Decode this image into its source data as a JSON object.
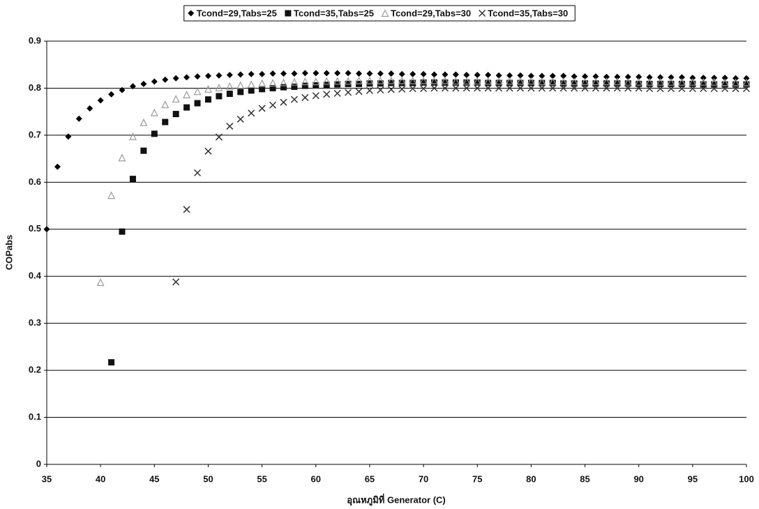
{
  "chart_data": {
    "type": "scatter",
    "x_label": "อุณหภูมิที่ Generator (C)",
    "y_label": "COPabs",
    "xlim": [
      35,
      100
    ],
    "xticks": [
      35,
      40,
      45,
      50,
      55,
      60,
      65,
      70,
      75,
      80,
      85,
      90,
      95,
      100
    ],
    "ylim": [
      0,
      0.9
    ],
    "yticks": [
      0,
      0.1,
      0.2,
      0.3,
      0.4,
      0.5,
      0.6,
      0.7,
      0.8,
      0.9
    ],
    "grid": true,
    "legend": "top",
    "series": [
      {
        "name": "Tcond=29,Tabs=25",
        "color": "#000000",
        "marker": "diamond",
        "x": [
          35,
          36,
          37,
          38,
          39,
          40,
          41,
          42,
          43,
          44,
          45,
          46,
          47,
          48,
          49,
          50,
          51,
          52,
          53,
          54,
          55,
          56,
          57,
          58,
          59,
          60,
          61,
          62,
          63,
          64,
          65,
          66,
          67,
          68,
          69,
          70,
          71,
          72,
          73,
          74,
          75,
          76,
          77,
          78,
          79,
          80,
          81,
          82,
          83,
          84,
          85,
          86,
          87,
          88,
          89,
          90,
          91,
          92,
          93,
          94,
          95,
          96,
          97,
          98,
          99,
          100
        ],
        "values": [
          0.5,
          0.633,
          0.697,
          0.735,
          0.757,
          0.774,
          0.787,
          0.796,
          0.804,
          0.809,
          0.814,
          0.818,
          0.821,
          0.823,
          0.825,
          0.826,
          0.827,
          0.828,
          0.829,
          0.83,
          0.83,
          0.831,
          0.831,
          0.831,
          0.832,
          0.832,
          0.832,
          0.832,
          0.832,
          0.831,
          0.831,
          0.831,
          0.831,
          0.83,
          0.83,
          0.83,
          0.829,
          0.829,
          0.829,
          0.828,
          0.828,
          0.828,
          0.827,
          0.827,
          0.827,
          0.826,
          0.826,
          0.826,
          0.826,
          0.825,
          0.825,
          0.825,
          0.824,
          0.824,
          0.824,
          0.824,
          0.823,
          0.823,
          0.823,
          0.823,
          0.822,
          0.822,
          0.822,
          0.822,
          0.821,
          0.821
        ]
      },
      {
        "name": "Tcond=35,Tabs=25",
        "color": "#111111",
        "marker": "square",
        "x": [
          41,
          42,
          43,
          44,
          45,
          46,
          47,
          48,
          49,
          50,
          51,
          52,
          53,
          54,
          55,
          56,
          57,
          58,
          59,
          60,
          61,
          62,
          63,
          64,
          65,
          66,
          67,
          68,
          69,
          70,
          71,
          72,
          73,
          74,
          75,
          76,
          77,
          78,
          79,
          80,
          81,
          82,
          83,
          84,
          85,
          86,
          87,
          88,
          89,
          90,
          91,
          92,
          93,
          94,
          95,
          96,
          97,
          98,
          99,
          100
        ],
        "values": [
          0.217,
          0.495,
          0.607,
          0.667,
          0.703,
          0.728,
          0.745,
          0.759,
          0.768,
          0.776,
          0.783,
          0.788,
          0.792,
          0.795,
          0.798,
          0.8,
          0.802,
          0.803,
          0.805,
          0.806,
          0.807,
          0.808,
          0.809,
          0.809,
          0.81,
          0.81,
          0.811,
          0.811,
          0.811,
          0.812,
          0.812,
          0.812,
          0.812,
          0.812,
          0.812,
          0.811,
          0.811,
          0.811,
          0.811,
          0.811,
          0.811,
          0.811,
          0.81,
          0.81,
          0.81,
          0.81,
          0.81,
          0.81,
          0.81,
          0.809,
          0.809,
          0.809,
          0.809,
          0.809,
          0.809,
          0.808,
          0.808,
          0.808,
          0.808,
          0.808
        ]
      },
      {
        "name": "Tcond=29,Tabs=30",
        "color": "#9a9a9a",
        "marker": "triangle",
        "x": [
          40,
          41,
          42,
          43,
          44,
          45,
          46,
          47,
          48,
          49,
          50,
          51,
          52,
          53,
          54,
          55,
          56,
          57,
          58,
          59,
          60,
          61,
          62,
          63,
          64,
          65,
          66,
          67,
          68,
          69,
          70,
          71,
          72,
          73,
          74,
          75,
          76,
          77,
          78,
          79,
          80,
          81,
          82,
          83,
          84,
          85,
          86,
          87,
          88,
          89,
          90,
          91,
          92,
          93,
          94,
          95,
          96,
          97,
          98,
          99,
          100
        ],
        "values": [
          0.387,
          0.572,
          0.652,
          0.697,
          0.727,
          0.748,
          0.765,
          0.777,
          0.786,
          0.793,
          0.798,
          0.801,
          0.804,
          0.806,
          0.808,
          0.81,
          0.811,
          0.812,
          0.813,
          0.814,
          0.814,
          0.815,
          0.815,
          0.815,
          0.816,
          0.816,
          0.816,
          0.816,
          0.816,
          0.816,
          0.816,
          0.816,
          0.816,
          0.815,
          0.815,
          0.815,
          0.815,
          0.815,
          0.815,
          0.815,
          0.815,
          0.814,
          0.814,
          0.814,
          0.814,
          0.814,
          0.814,
          0.814,
          0.814,
          0.813,
          0.813,
          0.813,
          0.813,
          0.813,
          0.813,
          0.813,
          0.813,
          0.813,
          0.812,
          0.812,
          0.812
        ]
      },
      {
        "name": "Tcond=35,Tabs=30",
        "color": "#333333",
        "marker": "cross",
        "x": [
          47,
          48,
          49,
          50,
          51,
          52,
          53,
          54,
          55,
          56,
          57,
          58,
          59,
          60,
          61,
          62,
          63,
          64,
          65,
          66,
          67,
          68,
          69,
          70,
          71,
          72,
          73,
          74,
          75,
          76,
          77,
          78,
          79,
          80,
          81,
          82,
          83,
          84,
          85,
          86,
          87,
          88,
          89,
          90,
          91,
          92,
          93,
          94,
          95,
          96,
          97,
          98,
          99,
          100
        ],
        "values": [
          0.388,
          0.542,
          0.62,
          0.666,
          0.696,
          0.719,
          0.734,
          0.747,
          0.757,
          0.764,
          0.77,
          0.776,
          0.78,
          0.784,
          0.787,
          0.789,
          0.791,
          0.793,
          0.795,
          0.796,
          0.797,
          0.798,
          0.799,
          0.799,
          0.8,
          0.8,
          0.8,
          0.8,
          0.8,
          0.8,
          0.8,
          0.8,
          0.8,
          0.8,
          0.8,
          0.8,
          0.8,
          0.8,
          0.8,
          0.8,
          0.8,
          0.8,
          0.8,
          0.8,
          0.799,
          0.799,
          0.799,
          0.799,
          0.799,
          0.799,
          0.799,
          0.799,
          0.799,
          0.799
        ]
      }
    ]
  }
}
